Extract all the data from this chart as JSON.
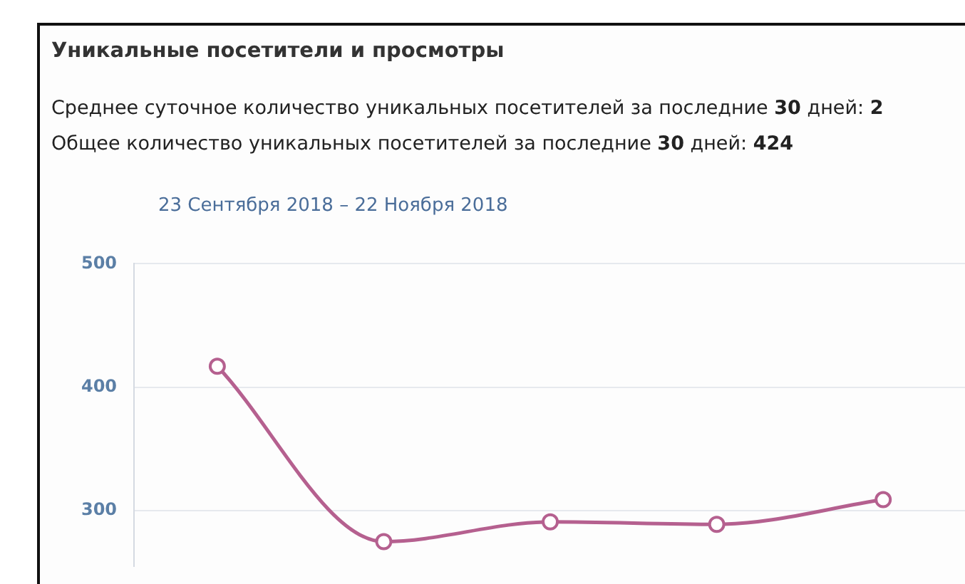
{
  "chart_data": {
    "type": "line",
    "title": "Уникальные посетители и просмотры",
    "subtitle": "23 Сентября 2018 – 22 Ноября 2018",
    "annotations": [
      "Среднее суточное количество уникальных посетителей за последние 30 дней: 2",
      "Общее количество уникальных посетителей за последние 30 дней: 424"
    ],
    "categories": [
      null,
      null,
      null,
      null,
      null
    ],
    "series": [
      {
        "color": "#b5608f",
        "values": [
          417,
          275,
          291,
          289,
          309
        ]
      }
    ],
    "ylim": [
      255,
      500
    ],
    "yticks": [
      300,
      400,
      500
    ],
    "grid": "y",
    "legend": false,
    "marker": "circle",
    "line_style": "solid"
  }
}
